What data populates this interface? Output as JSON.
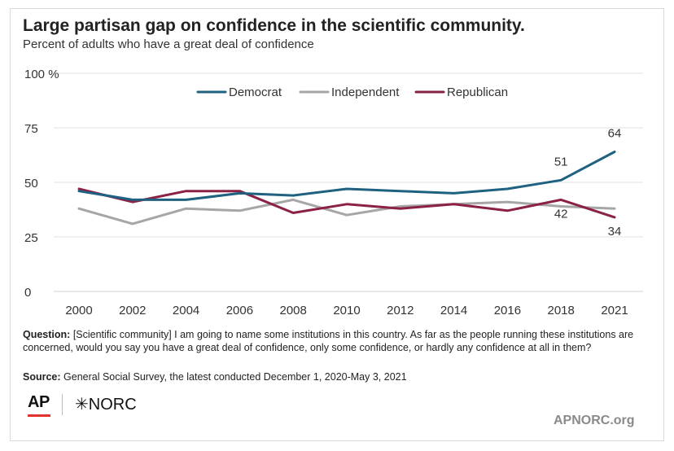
{
  "title": "Large partisan gap on confidence in the scientific community.",
  "subtitle": "Percent of adults who have a great deal of confidence",
  "chart_data": {
    "type": "line",
    "x": [
      "2000",
      "2002",
      "2004",
      "2006",
      "2008",
      "2010",
      "2012",
      "2014",
      "2016",
      "2018",
      "2021"
    ],
    "ylim": [
      0,
      100
    ],
    "yticks": [
      0,
      25,
      50,
      75,
      100
    ],
    "ytick_labels": [
      "0",
      "25",
      "50",
      "75",
      "100 %"
    ],
    "grid": true,
    "legend_position": "top",
    "series": [
      {
        "name": "Democrat",
        "color": "#1f6180",
        "values": [
          46,
          42,
          42,
          45,
          44,
          47,
          46,
          45,
          47,
          51,
          64
        ]
      },
      {
        "name": "Independent",
        "color": "#a6a6a6",
        "values": [
          38,
          31,
          38,
          37,
          42,
          35,
          39,
          40,
          41,
          39,
          38
        ]
      },
      {
        "name": "Republican",
        "color": "#8b2246",
        "values": [
          47,
          41,
          46,
          46,
          36,
          40,
          38,
          40,
          37,
          42,
          34
        ]
      }
    ],
    "annotations": [
      {
        "text": "64",
        "series": "Democrat",
        "x": "2021",
        "y": 64,
        "placement": "above"
      },
      {
        "text": "51",
        "series": "Democrat",
        "x": "2018",
        "y": 51,
        "placement": "above"
      },
      {
        "text": "42",
        "series": "Republican",
        "x": "2018",
        "y": 42,
        "placement": "below"
      },
      {
        "text": "34",
        "series": "Republican",
        "x": "2021",
        "y": 34,
        "placement": "below"
      }
    ]
  },
  "question_label": "Question:",
  "question_text": " [Scientific community] I am going to name some institutions in this country. As far as the people running these institutions are concerned, would you say you have a great deal of confidence, only some confidence, or hardly any confidence at all in them?",
  "source_label": "Source:",
  "source_text": " General Social Survey, the latest conducted December 1, 2020-May 3, 2021",
  "logos": {
    "ap": "AP",
    "norc": "✳NORC"
  },
  "footer_url": "APNORC.org"
}
